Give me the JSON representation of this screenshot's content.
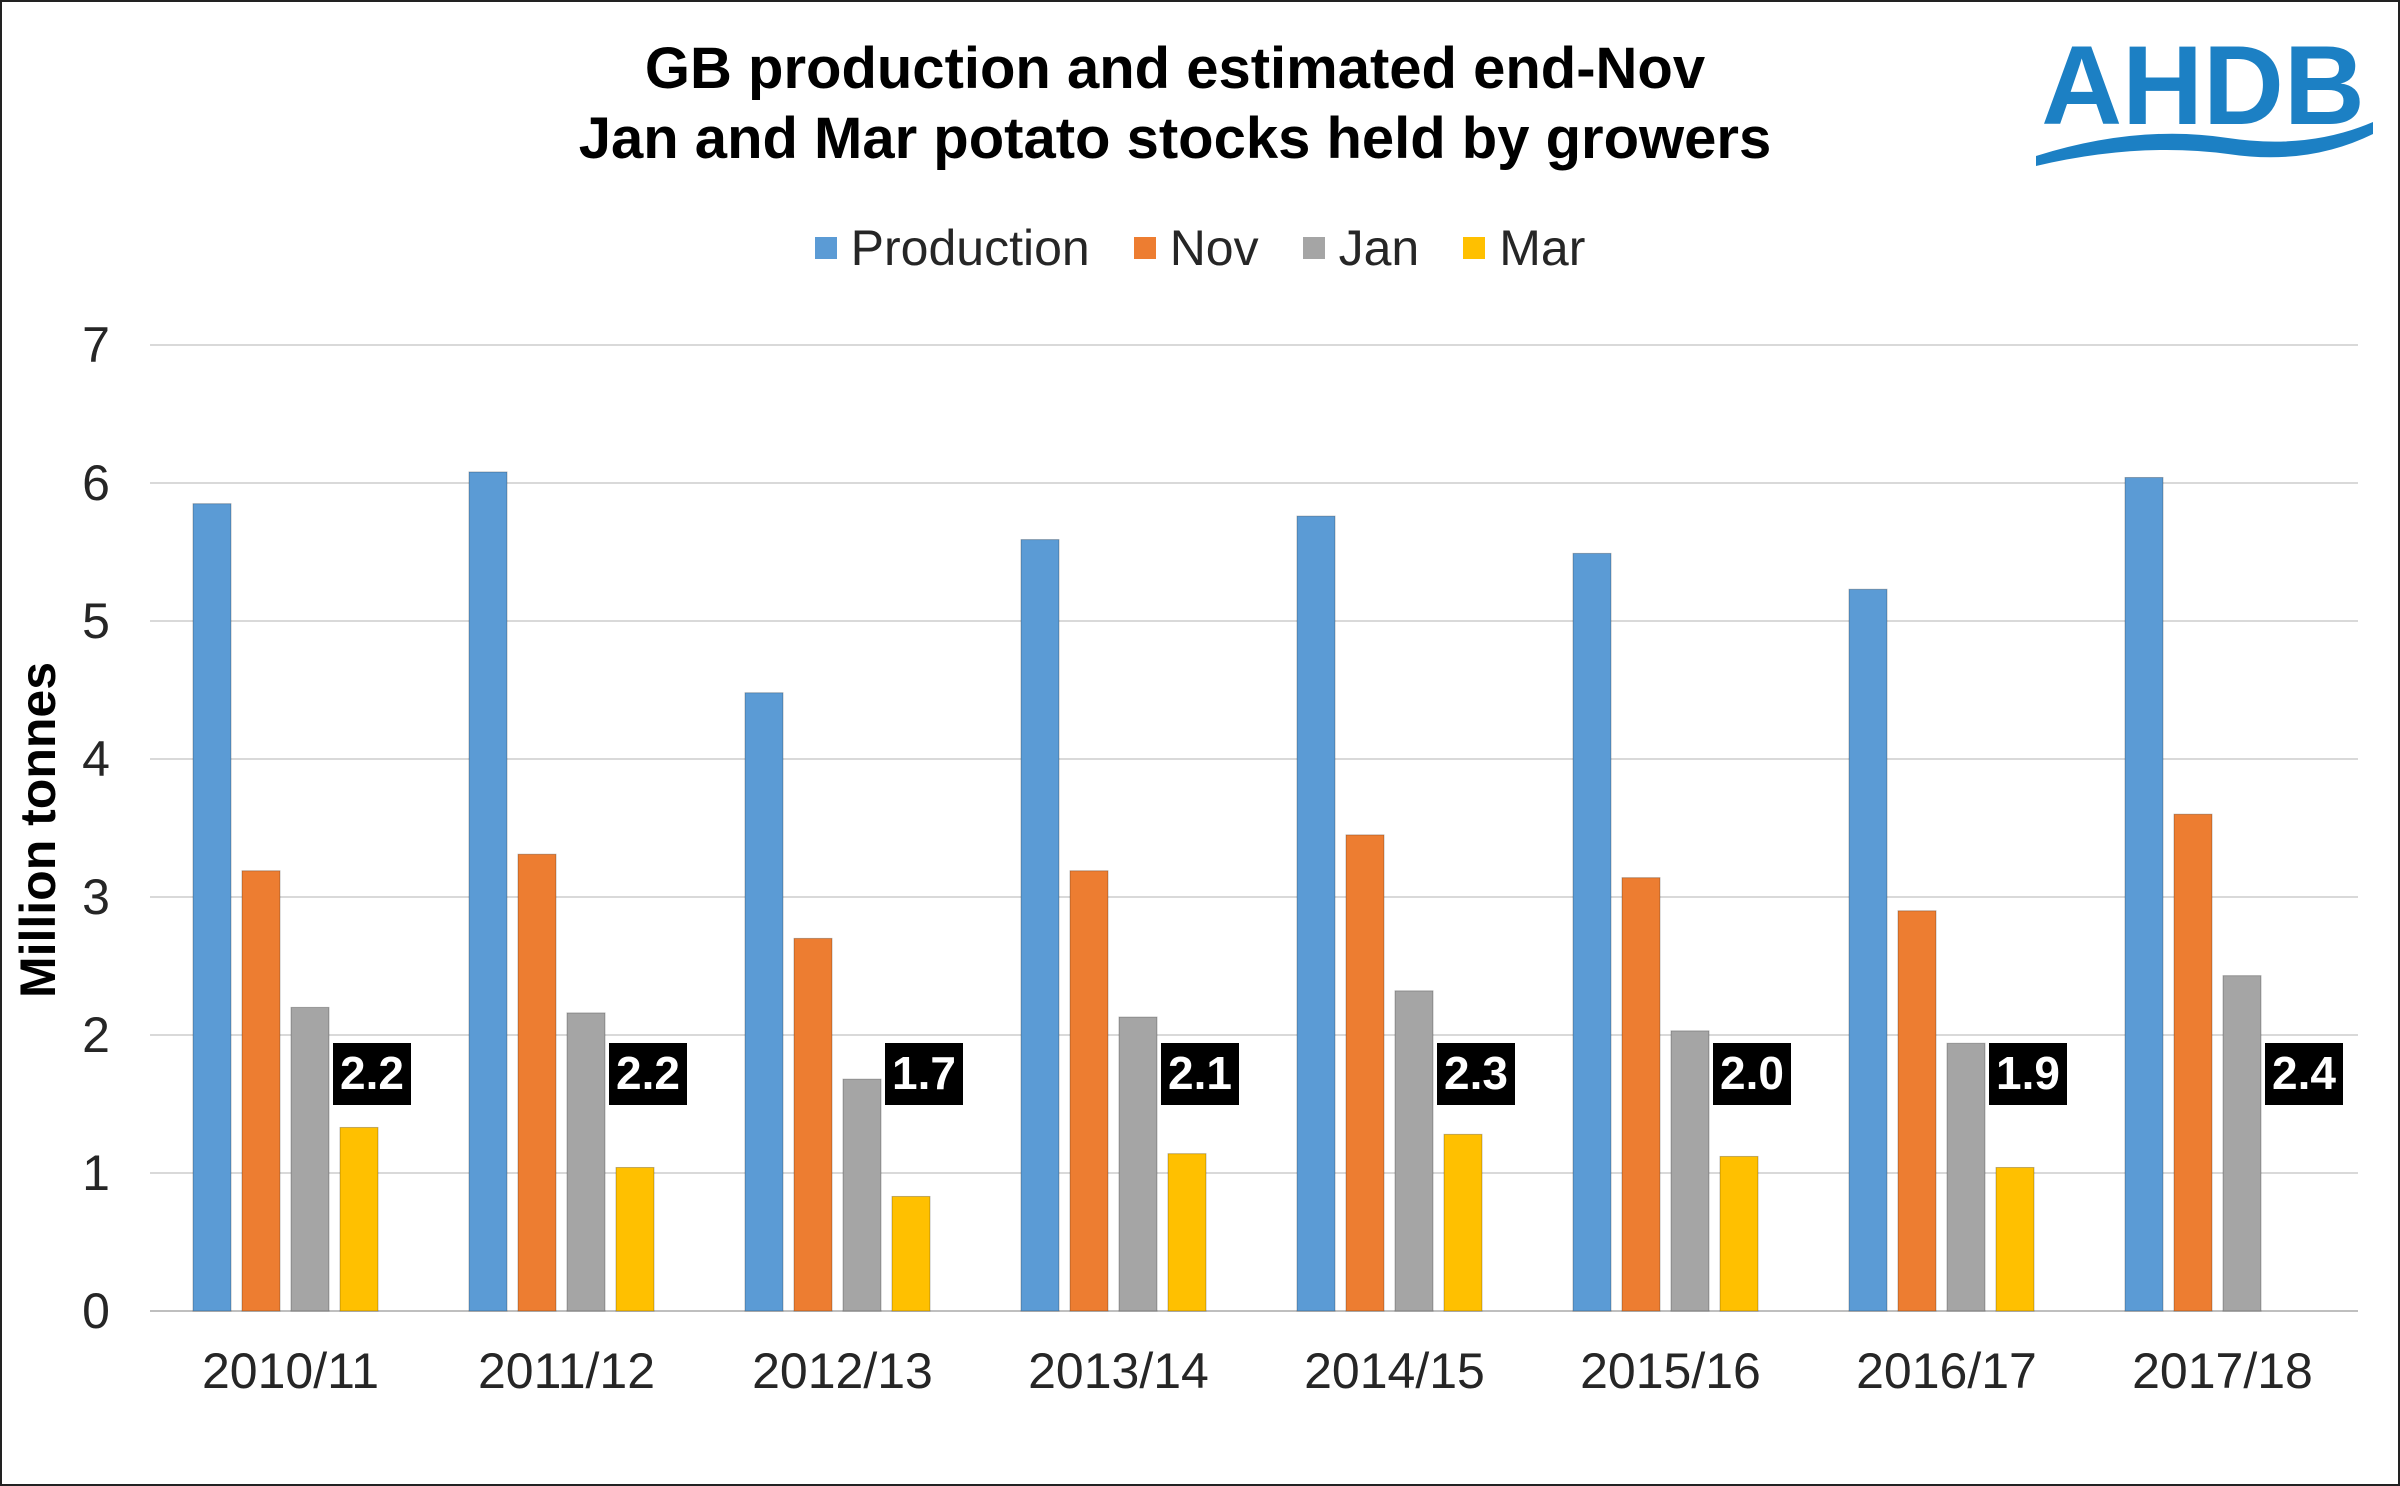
{
  "chart_data": {
    "type": "bar",
    "title_lines": [
      "GB production and estimated end-Nov",
      "Jan and Mar potato stocks held by growers"
    ],
    "xlabel": "",
    "ylabel": "Million tonnes",
    "ylim": [
      0,
      7
    ],
    "yticks": [
      "0",
      "1",
      "2",
      "3",
      "4",
      "5",
      "6",
      "7"
    ],
    "grid": true,
    "legend_position": "top",
    "categories": [
      "2010/11",
      "2011/12",
      "2012/13",
      "2013/14",
      "2014/15",
      "2015/16",
      "2016/17",
      "2017/18"
    ],
    "series": [
      {
        "name": "Production",
        "color": "#5b9bd5",
        "values": [
          5.85,
          6.08,
          4.48,
          5.59,
          5.76,
          5.49,
          5.23,
          6.04
        ]
      },
      {
        "name": "Nov",
        "color": "#ed7d31",
        "values": [
          3.19,
          3.31,
          2.7,
          3.19,
          3.45,
          3.14,
          2.9,
          3.6
        ]
      },
      {
        "name": "Jan",
        "color": "#a5a5a5",
        "values": [
          2.2,
          2.16,
          1.68,
          2.13,
          2.32,
          2.03,
          1.94,
          2.43
        ]
      },
      {
        "name": "Mar",
        "color": "#ffc000",
        "values": [
          1.33,
          1.04,
          0.83,
          1.14,
          1.28,
          1.12,
          1.04,
          null
        ]
      }
    ],
    "annotations": [
      "2.2",
      "2.2",
      "1.7",
      "2.1",
      "2.3",
      "2.0",
      "1.9",
      "2.4"
    ]
  },
  "logo": {
    "text": "AHDB",
    "color": "#1c80c4"
  }
}
